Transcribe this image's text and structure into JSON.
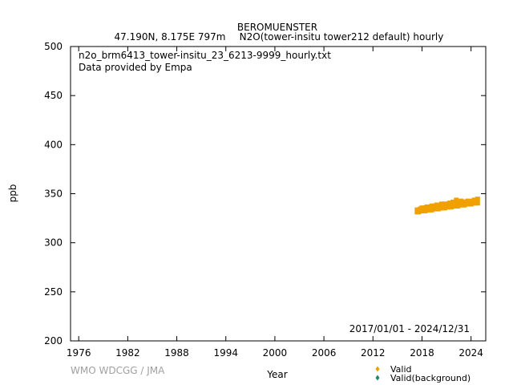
{
  "chart_data": {
    "type": "scatter",
    "title": "BEROMUENSTER",
    "subtitle_location": "47.190N, 8.175E 797m",
    "subtitle_species": "N2O(tower-insitu tower212 default) hourly",
    "file_label": "n2o_brm6413_tower-insitu_23_6213-9999_hourly.txt",
    "provider_label": "Data provided by Empa",
    "date_range": "2017/01/01 - 2024/12/31",
    "xlabel": "Year",
    "ylabel": "ppb",
    "xlim": [
      1975,
      2025.8
    ],
    "ylim": [
      200,
      500
    ],
    "xticks": [
      1976,
      1982,
      1988,
      1994,
      2000,
      2006,
      2012,
      2018,
      2024
    ],
    "yticks": [
      200,
      250,
      300,
      350,
      400,
      450,
      500
    ],
    "grid": false,
    "legend_position": "bottom-right",
    "series": [
      {
        "name": "Valid",
        "color": "#f0a000",
        "marker": "diamond",
        "x": [
          2017.4,
          2017.6,
          2017.8,
          2018.0,
          2018.2,
          2018.4,
          2018.6,
          2018.8,
          2019.0,
          2019.2,
          2019.4,
          2019.6,
          2019.8,
          2020.0,
          2020.2,
          2020.4,
          2020.6,
          2020.8,
          2021.0,
          2021.2,
          2021.4,
          2021.6,
          2021.8,
          2022.0,
          2022.2,
          2022.4,
          2022.6,
          2022.8,
          2023.0,
          2023.2,
          2023.4,
          2023.6,
          2023.8,
          2024.0,
          2024.2,
          2024.4,
          2024.6,
          2024.8
        ],
        "y": [
          331.5,
          332.0,
          332.5,
          332.5,
          333.0,
          333.0,
          333.5,
          333.5,
          334.0,
          334.0,
          334.5,
          334.5,
          335.0,
          335.0,
          335.5,
          335.5,
          336.0,
          336.0,
          336.5,
          336.5,
          337.0,
          337.0,
          337.5,
          337.5,
          338.0,
          338.0,
          338.5,
          338.5,
          339.0,
          339.0,
          339.5,
          339.5,
          340.0,
          340.0,
          340.5,
          340.5,
          341.0,
          341.0
        ],
        "y_min": [
          329,
          329,
          330,
          330,
          330,
          330,
          331,
          331,
          331,
          331,
          332,
          332,
          332,
          332,
          333,
          333,
          333,
          333,
          334,
          334,
          334,
          334,
          335,
          335,
          335,
          335,
          336,
          336,
          336,
          336,
          337,
          337,
          337,
          337,
          338,
          338,
          338,
          338
        ],
        "y_max": [
          336,
          336,
          337,
          338,
          337,
          338,
          339,
          339,
          339,
          340,
          339,
          340,
          341,
          340,
          341,
          342,
          341,
          342,
          341,
          342,
          343,
          342,
          344,
          343,
          346,
          343,
          344,
          345,
          343,
          344,
          344,
          345,
          343,
          344,
          345,
          346,
          344,
          347
        ]
      },
      {
        "name": "Valid(background)",
        "color": "#1a8a6a",
        "marker": "diamond",
        "x": [],
        "y": []
      }
    ]
  },
  "footer": {
    "credit": "WMO WDCGG / JMA"
  }
}
